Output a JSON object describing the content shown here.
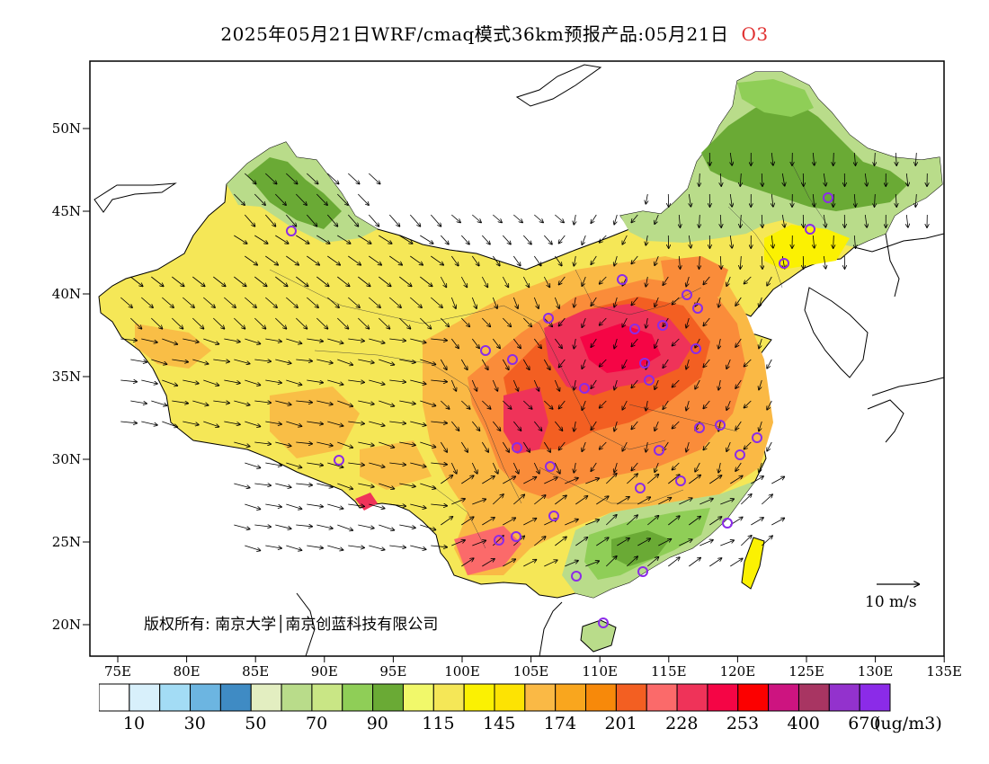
{
  "title": {
    "main": "2025年05月21日WRF/cmaq模式36km预报产品:05月21日",
    "species": "O3",
    "species_color": "#e03030"
  },
  "axes": {
    "lon_ticks": [
      "75E",
      "80E",
      "85E",
      "90E",
      "95E",
      "100E",
      "105E",
      "110E",
      "115E",
      "120E",
      "125E",
      "130E",
      "135E"
    ],
    "lat_ticks": [
      "20N",
      "25N",
      "30N",
      "35N",
      "40N",
      "45N",
      "50N"
    ]
  },
  "copyright": "版权所有: 南京大学│南京创蓝科技有限公司",
  "wind_reference": "10 m/s",
  "legend": {
    "colors": [
      "#ffffff",
      "#d8f0fb",
      "#a3dcf5",
      "#6cb5e1",
      "#3f8bc4",
      "#e3eec1",
      "#b9dc8a",
      "#c9e685",
      "#8fce57",
      "#6aaa35",
      "#f1f86a",
      "#f5e757",
      "#fbf102",
      "#fde303",
      "#fab945",
      "#f9a61e",
      "#f7890a",
      "#f35f22",
      "#fb6a6a",
      "#ef3359",
      "#f50545",
      "#fc0000",
      "#cd1480",
      "#a83562",
      "#9332cd",
      "#8b2be8"
    ],
    "labels": [
      "10",
      "30",
      "50",
      "70",
      "90",
      "115",
      "145",
      "174",
      "201",
      "228",
      "253",
      "400",
      "670"
    ],
    "unit": "(ug/m3)"
  },
  "map_colors": {
    "ocean": "#ffffff",
    "west_base": "#f5e757",
    "west_hot": "#fab945",
    "central_hot": "#fa8c3a",
    "core": "#ef3359",
    "core_dark": "#f50545",
    "north_green": "#b9dc8a",
    "dark_green": "#6aaa35",
    "south_green": "#8fce57",
    "yellow": "#fbf102",
    "city_marker": "#8b2be8"
  }
}
